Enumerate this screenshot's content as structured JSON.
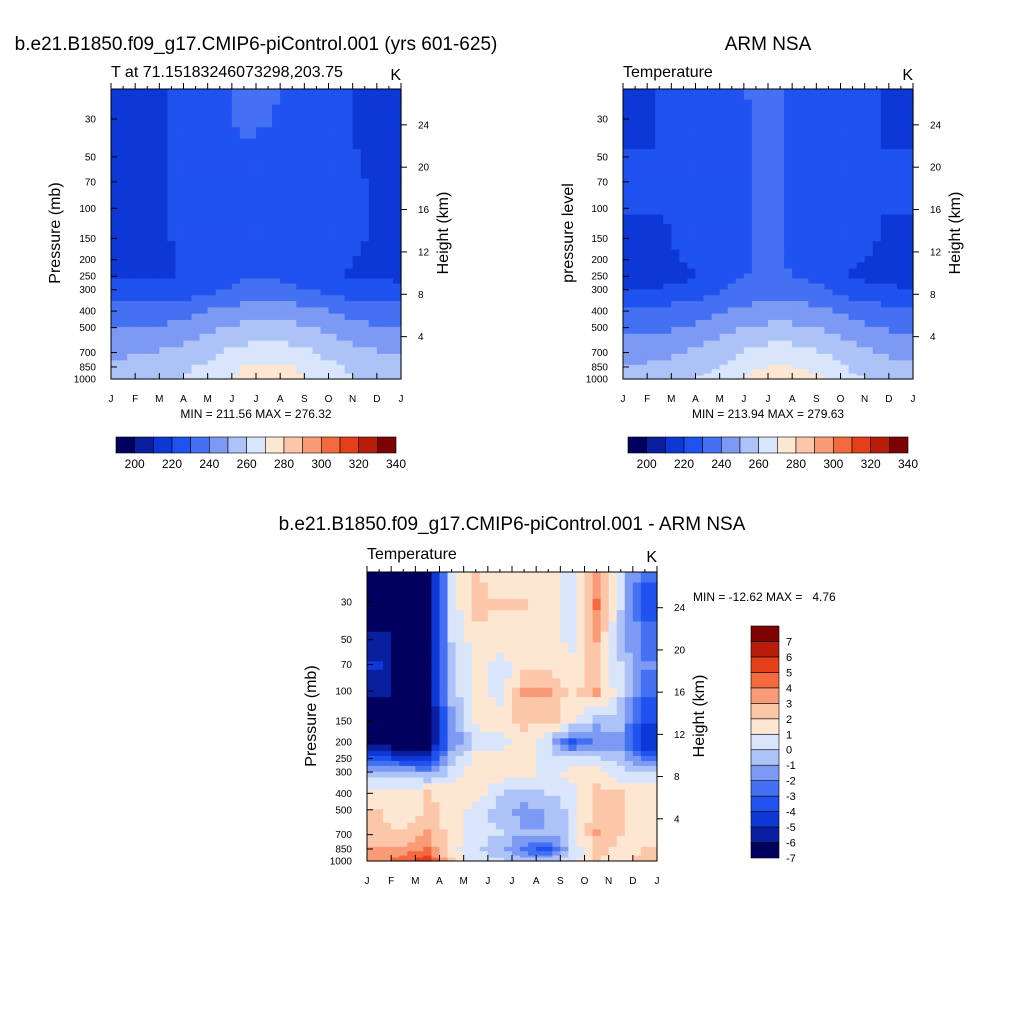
{
  "figure": {
    "panels": [
      {
        "id": "model",
        "title": "b.e21.B1850.f09_g17.CMIP6-piControl.001 (yrs 601-625)",
        "left_string": "T at 71.15183246073298,203.75",
        "right_string": "K",
        "ylabel_left": "Pressure (mb)",
        "ylabel_right": "Height (km)",
        "stats": "MIN = 211.56 MAX = 276.32"
      },
      {
        "id": "obs",
        "title": "ARM NSA",
        "left_string": "Temperature",
        "right_string": "K",
        "ylabel_left": "pressure level",
        "ylabel_right": "Height (km)",
        "stats": "MIN = 213.94 MAX = 279.63"
      },
      {
        "id": "diff",
        "title": "b.e21.B1850.f09_g17.CMIP6-piControl.001 - ARM NSA",
        "left_string": "Temperature",
        "right_string": "K",
        "ylabel_left": "Pressure (mb)",
        "ylabel_right": "Height (km)",
        "stats": "MIN = -12.62 MAX =   4.76"
      }
    ],
    "colorbar_abs": {
      "colors": [
        "#02005f",
        "#0a1ea0",
        "#0d38d6",
        "#1f52ef",
        "#4470f2",
        "#7c99f3",
        "#adc3f7",
        "#d8e5fb",
        "#fde7d3",
        "#fcc7a9",
        "#f99b76",
        "#f4693e",
        "#e43e1a",
        "#b71d09",
        "#7e0202"
      ],
      "labels": [
        "200",
        "220",
        "240",
        "260",
        "280",
        "300",
        "320",
        "340"
      ]
    },
    "colorbar_diff": {
      "colors": [
        "#02005f",
        "#0a1ea0",
        "#0d38d6",
        "#1f52ef",
        "#4470f2",
        "#7c99f3",
        "#adc3f7",
        "#d8e5fb",
        "#fde7d3",
        "#fcc7a9",
        "#f99b76",
        "#f4693e",
        "#e43e1a",
        "#b71d09",
        "#7e0202"
      ],
      "labels": [
        "7",
        "6",
        "5",
        "4",
        "3",
        "2",
        "1",
        "0",
        "-1",
        "-2",
        "-3",
        "-4",
        "-5",
        "-6",
        "-7"
      ]
    }
  },
  "chart_data": [
    {
      "type": "heatmap",
      "title": "b.e21.B1850.f09_g17.CMIP6-piControl.001 (yrs 601-625)",
      "xlabel": "",
      "ylabel": "Pressure (mb)",
      "y2label": "Height (km)",
      "units": "K",
      "x_ticks": [
        "J",
        "F",
        "M",
        "A",
        "M",
        "J",
        "J",
        "A",
        "S",
        "O",
        "N",
        "D",
        "J"
      ],
      "y_ticks": [
        30,
        50,
        70,
        100,
        150,
        200,
        250,
        300,
        400,
        500,
        700,
        850,
        1000
      ],
      "y_scale": "log",
      "y_reversed": true,
      "ylim": [
        1000,
        20
      ],
      "y2_ticks": [
        4,
        8,
        12,
        16,
        20,
        24
      ],
      "levels": [
        190,
        200,
        210,
        220,
        230,
        240,
        250,
        260,
        270,
        280,
        290,
        300,
        310,
        320,
        330,
        340,
        350
      ],
      "x": [
        0.5,
        1.5,
        2.5,
        3.5,
        4.5,
        5.5,
        6.5,
        7.5,
        8.5,
        9.5,
        10.5,
        11.5
      ],
      "y": [
        1000,
        850,
        700,
        500,
        400,
        300,
        250,
        200,
        150,
        100,
        70,
        50,
        30,
        20
      ],
      "z": [
        [
          256,
          257,
          258,
          262,
          268,
          272,
          275,
          273,
          268,
          262,
          258,
          256
        ],
        [
          253,
          254,
          256,
          260,
          265,
          270,
          272,
          270,
          266,
          260,
          256,
          254
        ],
        [
          248,
          249,
          251,
          255,
          259,
          263,
          265,
          263,
          259,
          255,
          251,
          249
        ],
        [
          240,
          241,
          243,
          246,
          250,
          253,
          255,
          253,
          250,
          246,
          243,
          241
        ],
        [
          233,
          234,
          235,
          238,
          241,
          244,
          245,
          244,
          241,
          238,
          235,
          234
        ],
        [
          224,
          224,
          225,
          227,
          230,
          233,
          234,
          233,
          230,
          227,
          225,
          224
        ],
        [
          218,
          218,
          219,
          222,
          226,
          229,
          229,
          227,
          223,
          220,
          218,
          218
        ],
        [
          218,
          218,
          219,
          223,
          227,
          229,
          229,
          228,
          225,
          221,
          219,
          218
        ],
        [
          219,
          219,
          220,
          224,
          227,
          229,
          229,
          229,
          228,
          223,
          220,
          219
        ],
        [
          219,
          219,
          220,
          224,
          227,
          229,
          229,
          229,
          228,
          223,
          220,
          219
        ],
        [
          219,
          219,
          220,
          224,
          227,
          229,
          229,
          229,
          226,
          222,
          220,
          219
        ],
        [
          219,
          219,
          220,
          224,
          227,
          229,
          229,
          229,
          225,
          222,
          219,
          219
        ],
        [
          219,
          219,
          220,
          224,
          228,
          231,
          230,
          229,
          224,
          221,
          219,
          219
        ],
        [
          219,
          219,
          220,
          224,
          228,
          232,
          231,
          229,
          224,
          221,
          219,
          219
        ]
      ],
      "stats": {
        "min": 211.56,
        "max": 276.32
      }
    },
    {
      "type": "heatmap",
      "title": "ARM NSA",
      "xlabel": "",
      "ylabel": "pressure level",
      "y2label": "Height (km)",
      "units": "K",
      "x_ticks": [
        "J",
        "F",
        "M",
        "A",
        "M",
        "J",
        "J",
        "A",
        "S",
        "O",
        "N",
        "D",
        "J"
      ],
      "y_ticks": [
        30,
        50,
        70,
        100,
        150,
        200,
        250,
        300,
        400,
        500,
        700,
        850,
        1000
      ],
      "y_scale": "log",
      "y_reversed": true,
      "ylim": [
        1000,
        20
      ],
      "y2_ticks": [
        4,
        8,
        12,
        16,
        20,
        24
      ],
      "levels": [
        190,
        200,
        210,
        220,
        230,
        240,
        250,
        260,
        270,
        280,
        290,
        300,
        310,
        320,
        330,
        340,
        350
      ],
      "x": [
        0.5,
        1.5,
        2.5,
        3.5,
        4.5,
        5.5,
        6.5,
        7.5,
        8.5,
        9.5,
        10.5,
        11.5
      ],
      "y": [
        1000,
        850,
        700,
        500,
        400,
        300,
        250,
        200,
        150,
        100,
        70,
        50,
        30,
        20
      ],
      "z": [
        [
          254,
          255,
          257,
          262,
          268,
          273,
          276,
          274,
          268,
          262,
          257,
          255
        ],
        [
          251,
          252,
          254,
          258,
          263,
          269,
          271,
          269,
          264,
          258,
          254,
          252
        ],
        [
          246,
          247,
          249,
          253,
          257,
          262,
          264,
          262,
          258,
          253,
          249,
          247
        ],
        [
          238,
          239,
          241,
          245,
          249,
          252,
          254,
          252,
          249,
          245,
          241,
          239
        ],
        [
          231,
          232,
          234,
          237,
          240,
          243,
          244,
          243,
          240,
          237,
          234,
          232
        ],
        [
          222,
          222,
          224,
          228,
          232,
          235,
          235,
          234,
          231,
          226,
          223,
          222
        ],
        [
          215,
          215,
          217,
          222,
          228,
          231,
          231,
          229,
          225,
          219,
          216,
          215
        ],
        [
          218,
          219,
          220,
          224,
          228,
          230,
          230,
          229,
          226,
          221,
          219,
          218
        ],
        [
          219,
          219,
          221,
          224,
          228,
          230,
          230,
          229,
          226,
          222,
          220,
          219
        ],
        [
          220,
          220,
          221,
          225,
          228,
          230,
          230,
          229,
          225,
          221,
          220,
          220
        ],
        [
          220,
          220,
          221,
          225,
          228,
          230,
          230,
          229,
          224,
          221,
          220,
          220
        ],
        [
          220,
          220,
          221,
          225,
          228,
          230,
          230,
          229,
          224,
          221,
          220,
          220
        ],
        [
          219,
          220,
          221,
          225,
          228,
          230,
          230,
          229,
          224,
          221,
          220,
          219
        ],
        [
          219,
          220,
          221,
          225,
          228,
          231,
          230,
          229,
          224,
          221,
          220,
          219
        ]
      ],
      "stats": {
        "min": 213.94,
        "max": 279.63
      }
    },
    {
      "type": "heatmap",
      "title": "b.e21.B1850.f09_g17.CMIP6-piControl.001 - ARM NSA",
      "xlabel": "",
      "ylabel": "Pressure (mb)",
      "y2label": "Height (km)",
      "units": "K",
      "x_ticks": [
        "J",
        "F",
        "M",
        "A",
        "M",
        "J",
        "J",
        "A",
        "S",
        "O",
        "N",
        "D",
        "J"
      ],
      "y_ticks": [
        30,
        50,
        70,
        100,
        150,
        200,
        250,
        300,
        400,
        500,
        700,
        850,
        1000
      ],
      "y_scale": "log",
      "y_reversed": true,
      "ylim": [
        1000,
        20
      ],
      "y2_ticks": [
        4,
        8,
        12,
        16,
        20,
        24
      ],
      "levels": [
        -8,
        -7,
        -6,
        -5,
        -4,
        -3,
        -2,
        -1,
        0,
        1,
        2,
        3,
        4,
        5,
        6,
        7,
        8
      ],
      "x": [
        0.5,
        1.5,
        2.5,
        3.5,
        4.5,
        5.5,
        6.5,
        7.5,
        8.5,
        9.5,
        10.5,
        11.5
      ],
      "y": [
        1000,
        850,
        700,
        500,
        400,
        300,
        250,
        200,
        150,
        100,
        70,
        50,
        30,
        20
      ],
      "z": [
        [
          2.5,
          3.5,
          4.5,
          1.0,
          -0.5,
          -1.0,
          -1.5,
          -1.5,
          -0.5,
          1.0,
          0.5,
          1.5
        ],
        [
          2.0,
          2.5,
          3.0,
          0.5,
          -1.0,
          -1.5,
          -3.5,
          -4.5,
          -1.0,
          1.5,
          0.5,
          1.0
        ],
        [
          1.5,
          1.0,
          2.0,
          0.5,
          -0.5,
          -1.0,
          -2.0,
          -2.0,
          -0.5,
          2.0,
          1.0,
          0.5
        ],
        [
          1.0,
          0.0,
          1.5,
          0.5,
          -0.5,
          -1.5,
          -2.5,
          -2.0,
          -0.5,
          1.5,
          1.0,
          0.5
        ],
        [
          0.5,
          0.5,
          1.0,
          0.5,
          0.5,
          -1.0,
          -1.5,
          -1.0,
          -0.5,
          1.5,
          1.0,
          0.5
        ],
        [
          -1.5,
          -1.5,
          -2.0,
          -0.5,
          0.5,
          0.5,
          0.5,
          -0.5,
          0.5,
          0.5,
          -0.5,
          -1.0
        ],
        [
          -4.5,
          -5.5,
          -5.5,
          -1.5,
          0.5,
          0.5,
          0.5,
          -0.5,
          -0.5,
          -1.0,
          -1.5,
          -3.5
        ],
        [
          -8.0,
          -8.0,
          -8.0,
          -3.0,
          -1.0,
          -0.5,
          0.5,
          -1.0,
          -4.5,
          -3.0,
          -2.5,
          -6.0
        ],
        [
          -8.0,
          -8.0,
          -8.0,
          -2.5,
          0.5,
          0.5,
          1.5,
          1.5,
          0.5,
          -1.5,
          -1.5,
          -5.0
        ],
        [
          -6.5,
          -8.0,
          -8.0,
          -1.5,
          0.5,
          -0.5,
          2.0,
          2.0,
          0.5,
          2.0,
          -1.0,
          -3.5
        ],
        [
          -6.0,
          -8.0,
          -8.0,
          -1.5,
          0.5,
          -0.5,
          0.5,
          0.5,
          0.5,
          1.5,
          -1.0,
          -3.0
        ],
        [
          -6.5,
          -8.0,
          -8.0,
          -1.0,
          0.5,
          0.5,
          0.5,
          0.5,
          -0.5,
          2.0,
          -1.5,
          -3.5
        ],
        [
          -8.0,
          -8.0,
          -8.0,
          -0.5,
          1.5,
          1.0,
          1.0,
          0.5,
          -0.5,
          3.0,
          -1.0,
          -4.5
        ],
        [
          -8.0,
          -8.0,
          -8.0,
          -0.5,
          1.0,
          0.5,
          0.5,
          0.5,
          -0.5,
          2.5,
          -1.0,
          -4.0
        ]
      ],
      "stats": {
        "min": -12.62,
        "max": 4.76
      }
    }
  ]
}
